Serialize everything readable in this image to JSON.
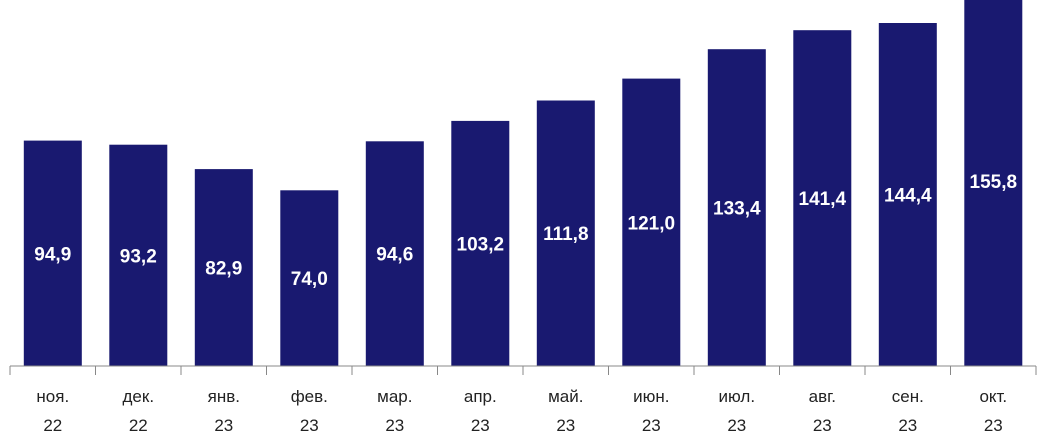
{
  "chart_data": {
    "type": "bar",
    "categories": [
      [
        "ноя.",
        "22"
      ],
      [
        "дек.",
        "22"
      ],
      [
        "янв.",
        "23"
      ],
      [
        "фев.",
        "23"
      ],
      [
        "мар.",
        "23"
      ],
      [
        "апр.",
        "23"
      ],
      [
        "май.",
        "23"
      ],
      [
        "июн.",
        "23"
      ],
      [
        "июл.",
        "23"
      ],
      [
        "авг.",
        "23"
      ],
      [
        "сен.",
        "23"
      ],
      [
        "окт.",
        "23"
      ]
    ],
    "values": [
      94.9,
      93.2,
      82.9,
      74.0,
      94.6,
      103.2,
      111.8,
      121.0,
      133.4,
      141.4,
      144.4,
      155.8
    ],
    "value_labels": [
      "94,9",
      "93,2",
      "82,9",
      "74,0",
      "94,6",
      "103,2",
      "111,8",
      "121,0",
      "133,4",
      "141,4",
      "144,4",
      "155,8"
    ],
    "ylim": [
      0,
      160
    ],
    "grid": false,
    "bar_color": "#191970",
    "label_color": "#ffffff",
    "axis_color": "#888888"
  }
}
